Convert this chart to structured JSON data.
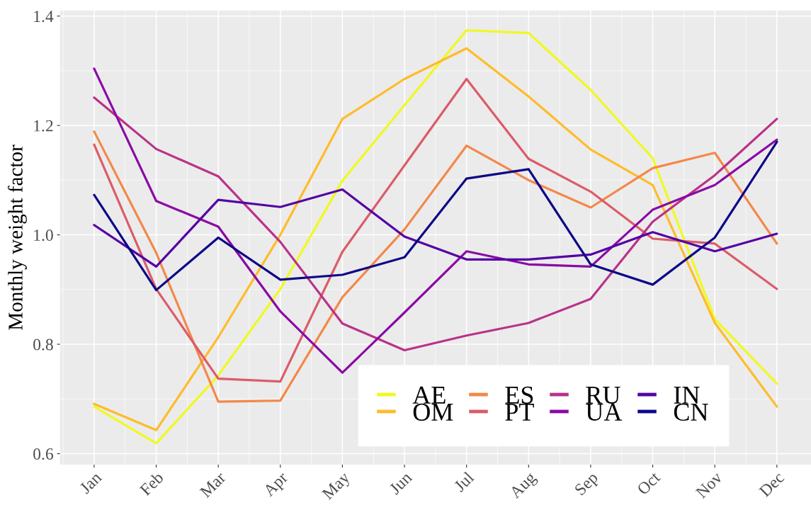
{
  "chart_data": {
    "type": "line",
    "ylabel": "Monthly weight factor",
    "categories": [
      "Jan",
      "Feb",
      "Mar",
      "Apr",
      "May",
      "Jun",
      "Jul",
      "Aug",
      "Sep",
      "Oct",
      "Nov",
      "Dec"
    ],
    "series": [
      {
        "name": "AE",
        "color": "#f0f921",
        "values": [
          0.686,
          0.619,
          0.743,
          0.901,
          1.099,
          1.237,
          1.374,
          1.369,
          1.265,
          1.14,
          0.846,
          0.728
        ]
      },
      {
        "name": "OM",
        "color": "#febc2a",
        "values": [
          0.691,
          0.643,
          0.813,
          1.0,
          1.212,
          1.285,
          1.341,
          1.253,
          1.156,
          1.091,
          0.839,
          0.686
        ]
      },
      {
        "name": "ES",
        "color": "#f48849",
        "values": [
          1.189,
          0.967,
          0.695,
          0.697,
          0.886,
          1.01,
          1.163,
          1.1,
          1.05,
          1.122,
          1.15,
          0.984
        ]
      },
      {
        "name": "PT",
        "color": "#db5c68",
        "values": [
          1.165,
          0.901,
          0.737,
          0.732,
          0.969,
          1.127,
          1.285,
          1.139,
          1.079,
          0.993,
          0.984,
          0.901
        ]
      },
      {
        "name": "RU",
        "color": "#b93289",
        "values": [
          1.251,
          1.157,
          1.107,
          0.987,
          0.838,
          0.789,
          0.816,
          0.839,
          0.883,
          1.024,
          1.109,
          1.212
        ]
      },
      {
        "name": "UA",
        "color": "#8b0aa5",
        "values": [
          1.304,
          1.062,
          1.015,
          0.86,
          0.748,
          0.858,
          0.97,
          0.946,
          0.942,
          1.046,
          1.091,
          1.174
        ]
      },
      {
        "name": "IN",
        "color": "#5402a3",
        "values": [
          1.018,
          0.942,
          1.064,
          1.051,
          1.083,
          0.997,
          0.955,
          0.955,
          0.964,
          1.005,
          0.97,
          1.002
        ]
      },
      {
        "name": "CN",
        "color": "#0d0887",
        "values": [
          1.073,
          0.899,
          0.995,
          0.918,
          0.927,
          0.959,
          1.103,
          1.12,
          0.946,
          0.909,
          0.995,
          1.17
        ]
      }
    ],
    "ylim": [
      0.58,
      1.41
    ],
    "yticks": [
      0.6,
      0.8,
      {
        "value": 1.0,
        "label": "1.0"
      },
      1.2,
      1.4
    ],
    "grid": true,
    "legend": "bottom right",
    "marker": "none",
    "line_style": "solid"
  }
}
